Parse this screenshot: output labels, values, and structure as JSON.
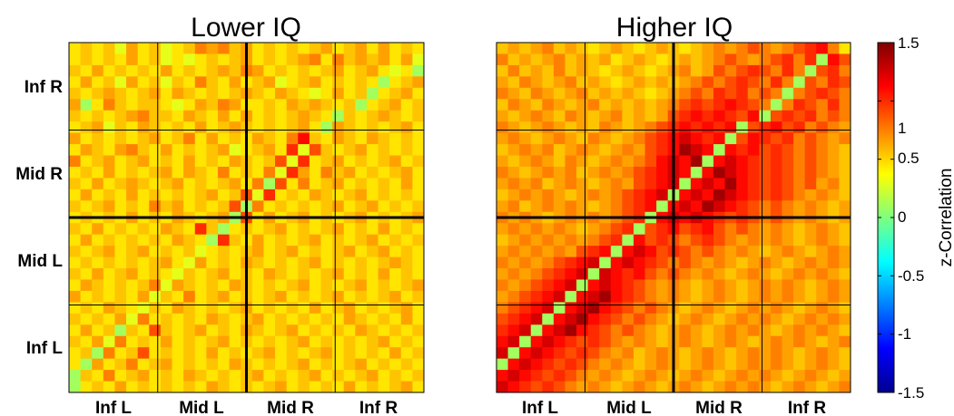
{
  "chart_data": {
    "type": "heatmap",
    "panels": [
      {
        "title": "Lower IQ",
        "xticklabels": [
          "Inf L",
          "Mid L",
          "Mid R",
          "Inf R"
        ],
        "yticklabels": [
          "Inf R",
          "Mid R",
          "Mid L",
          "Inf L"
        ],
        "rows": [
          "GHGHFIGHFGHJIJHIGHGHGHIGHIGIGHG",
          "GHGHGIGHFGFGHGHIGHGHIJGJHIHIGIF",
          "HGIGHGHGIGHGHIHJIGHGHGHIGHIGFGE",
          "GIGHFIGHFHGJHGIGHIFGHIGHGHGEGHI",
          "HGHIHGHIGIHGHGHIHGIHGFGIGHEGHIG",
          "IEGJHGHHGFGIHJIGGHGIHIHGHEGHIGH",
          "HGHGHIJHHGIHGIGIGHGHIHGEHGHIHGH",
          "GHIFHGIHGHGIGHIHGHGHIGEIHGHGHIG",
          "IGHGHGHIGHJGIGHGIHGJMHGIHGIHGHG",
          "GIHGIJHGIGHGHIFGHIGLFKHGHIGHGHG",
          "JGHIGHIGHGIGHGIHGHKFLGHIGHGHIGH",
          "GHGIGHGHIGIHGJGHGJFLIGJHIGHGHIG",
          "HGIGHIHGHIGHGHIGJEKGJGHIGHGHGIG",
          "GIGHGIGHGHGHIGHKFLGHGIHGHIGHGHG",
          "HGHIGHGJHIGHGHKEJGHGHGHIGHIGHGH",
          "GHGHGIGHGIHGHIEKGIGHIGHGHIGHGHI",
          "HGIGHGHGIHGLHEGHGHIGHGHIGHGIGHG",
          "GIGHGHGHGIHGELHGIGHGHIGHGHIGHGH",
          "HGHIGHIGHGHFGHGHIGHIGHGHIGHIGHG",
          "GHGHGHGHIGFIGHGIHGHGHIGHGHGHIHG",
          "HGIGHIGHGFHGHIGHGIHGHGHIGHGIGHG",
          "GIHGHGHJFIHGHGIHGHGHIGHGHIGHGHI",
          "IGHGHGIFHGJGHIGHGHIGHGHIGHGHIGH",
          "GHGIHGFHGIHGHGHIGHGHGIGHIGHGHIG",
          "HGHGIFJGHGHGIHGHIGHGHGHGIHGHGIG",
          "GIGHEHGKHGHIGHGIHGHIGHGHGIHGHGH",
          "HGIFJGHGIGHGHIGHGHGHIGHGHGHIGHG",
          "GHEJGHKGHGHGIGHGHIGHGHIGHGHGIGH",
          "GEIGHJGHIGHGHGIHGHGHIGHGHIGHGHG",
          "EHGJGHIGHGIHGHGHIGHGHIGHGHIGHGH",
          "DGHGIGHGHGHGIHGHGHIGHGHGIGHGHIG"
        ]
      },
      {
        "title": "Higher IQ",
        "xticklabels": [
          "Inf L",
          "Mid L",
          "Mid R",
          "Inf R"
        ],
        "yticklabels": [
          "Inf R",
          "Mid R",
          "Mid L",
          "Inf L"
        ],
        "rows": [
          "HIHIJHIHGHIHGHIHGHIJIJKJIJKLMJG",
          "JHIHIJHIHIGHIHGHIHIJKJIJKLJLEMK",
          "HJHIHJHIHGHIHGHIJHIKJKLKJLJEKLJ",
          "IHJIHIJHIHGHIHIHIJKJKLKJLJEKJLK",
          "JIHJIHIJHIHIHGHIJKJLKLJKJEJKLKJ",
          "HJIHJIHIJHIHIHIJKLKLMLKJEJLKJLJ",
          "IHIJIHJIHIJHIHIKLMLMLKMEKLKLJKJ",
          "JIHIJIHIHJIHIJKLMLMLMEKLMKLJKJI",
          "IJIHIJIHJIHIJKLMNMLMEKMLKLJKJIJ",
          "HIJIJHIJIHIJIKLMONMEMLMKLKJKJIH",
          "IHIJIHJIHIJIJKMNMOEMNMLKLKJKJIH",
          "JIHIJIJHIJIJKLMNMEMONMLKLKJKJIH",
          "IJIJHIJIHIJIKLMNEMNMOMLKLKJKIJH",
          "HIJIJIHIJIJKLMNEMNMONMLKLKJIJIH",
          "IJHIJIJIHIJKLMEMNMONMLKJKJIJIHI",
          "JIJIHIJIJIJKLEMNMNMLKLKJKJIJIHI",
          "IJIJIJIHIJKLEKLMKLMKJKJIJIHIJIH",
          "HIJIJIJIJKLEMKLKJKLKJIJIJIHIJIH",
          "IJIJIJIKLMEMNMKLKJKJIJIHIJIHIJI",
          "JIJIJKLMNEMNMLKJKJIJIHIJIHIJIJI",
          "IJIJKLMNENMLMKJKJIJIHIJIHIJIJIH",
          "JIJKLMNEMNMLKJIJIHIJIHIJIJIHIJI",
          "IJKLMNEMNOMLKJIJIHIJIHIJIJIHIJI",
          "JKLMNEMNOMLKJKJIHIJIHIJIJIHIJIH",
          "KLMNEMNOMLKJKJIHIJIHIJIJIHIJIJI",
          "LMNEMNOMLKJKJIHIJIHIJIJIHIJIJIH",
          "MNEMNMLKLKJIJIHIJIHIJIHIJIJIHIJ",
          "NEMNMLKLKJIJHIJIHIJIHIJIJIHIJIH",
          "EMNMLKLKJIJIHIJIHIJIHIJIJIHIJIH",
          "MNMLKLKJIJIHIJIHIJIHIJIJIHIJIHI",
          "NMLKLKJIJIHIJIHIJIHIJIJIHIJIHIJ"
        ]
      }
    ],
    "level_key": {
      "D": 0.1,
      "E": 0.1,
      "F": 0.3,
      "G": 0.45,
      "H": 0.55,
      "I": 0.65,
      "J": 0.75,
      "K": 0.9,
      "L": 1.0,
      "M": 1.1,
      "N": 1.25,
      "O": 1.4
    },
    "colorbar": {
      "label": "z-Correlation",
      "range": [
        -1.5,
        1.5
      ],
      "ticks": [
        1.5,
        1,
        0.5,
        0,
        -0.5,
        -1,
        -1.5
      ],
      "colormap": "jet"
    }
  }
}
